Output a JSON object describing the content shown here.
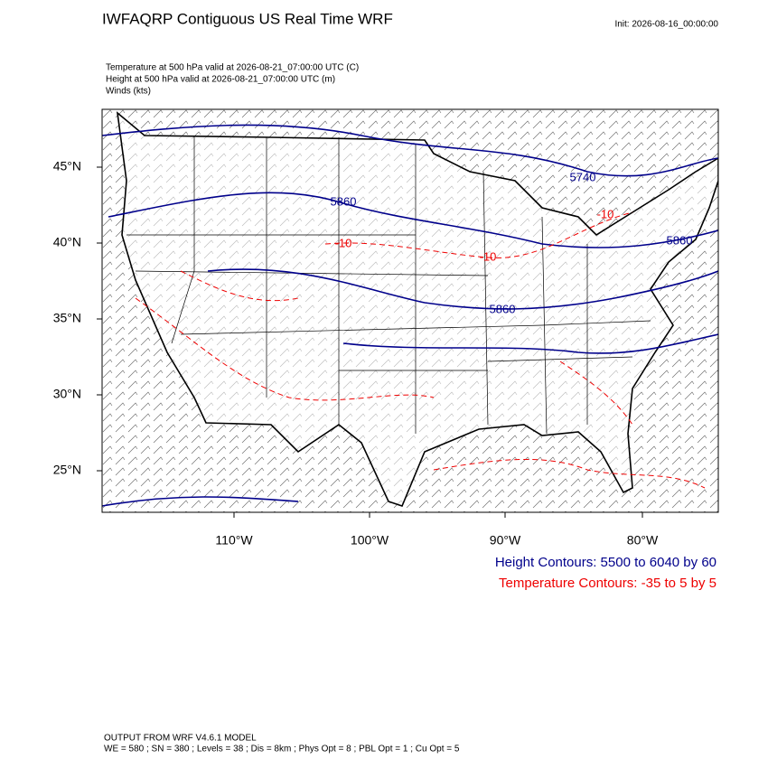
{
  "header": {
    "title": "IWFAQRP Contiguous US Real Time WRF",
    "init": "Init: 2026-08-16_00:00:00",
    "fields": [
      "Temperature at 500 hPa valid at 2026-08-21_07:00:00 UTC   (C)",
      "Height at 500 hPa valid at 2026-08-21_07:00:00 UTC   (m)",
      "Winds   (kts)"
    ]
  },
  "map": {
    "lat_labels": [
      "45°N",
      "40°N",
      "35°N",
      "30°N",
      "25°N"
    ],
    "lon_labels": [
      "110°W",
      "100°W",
      "90°W",
      "80°W"
    ],
    "height_contour_labels": [
      "5740",
      "5860",
      "5860",
      "5860"
    ],
    "temperature_contour_labels": [
      "-10",
      "-10",
      "-10"
    ]
  },
  "legend": {
    "height": "Height Contours: 5500 to 6040 by 60",
    "temperature": "Temperature Contours: -35 to 5 by 5"
  },
  "footer": [
    "OUTPUT FROM WRF V4.6.1 MODEL",
    "WE = 580 ; SN = 380 ; Levels = 38 ; Dis = 8km ; Phys Opt = 8 ; PBL Opt = 1 ; Cu Opt = 5"
  ]
}
